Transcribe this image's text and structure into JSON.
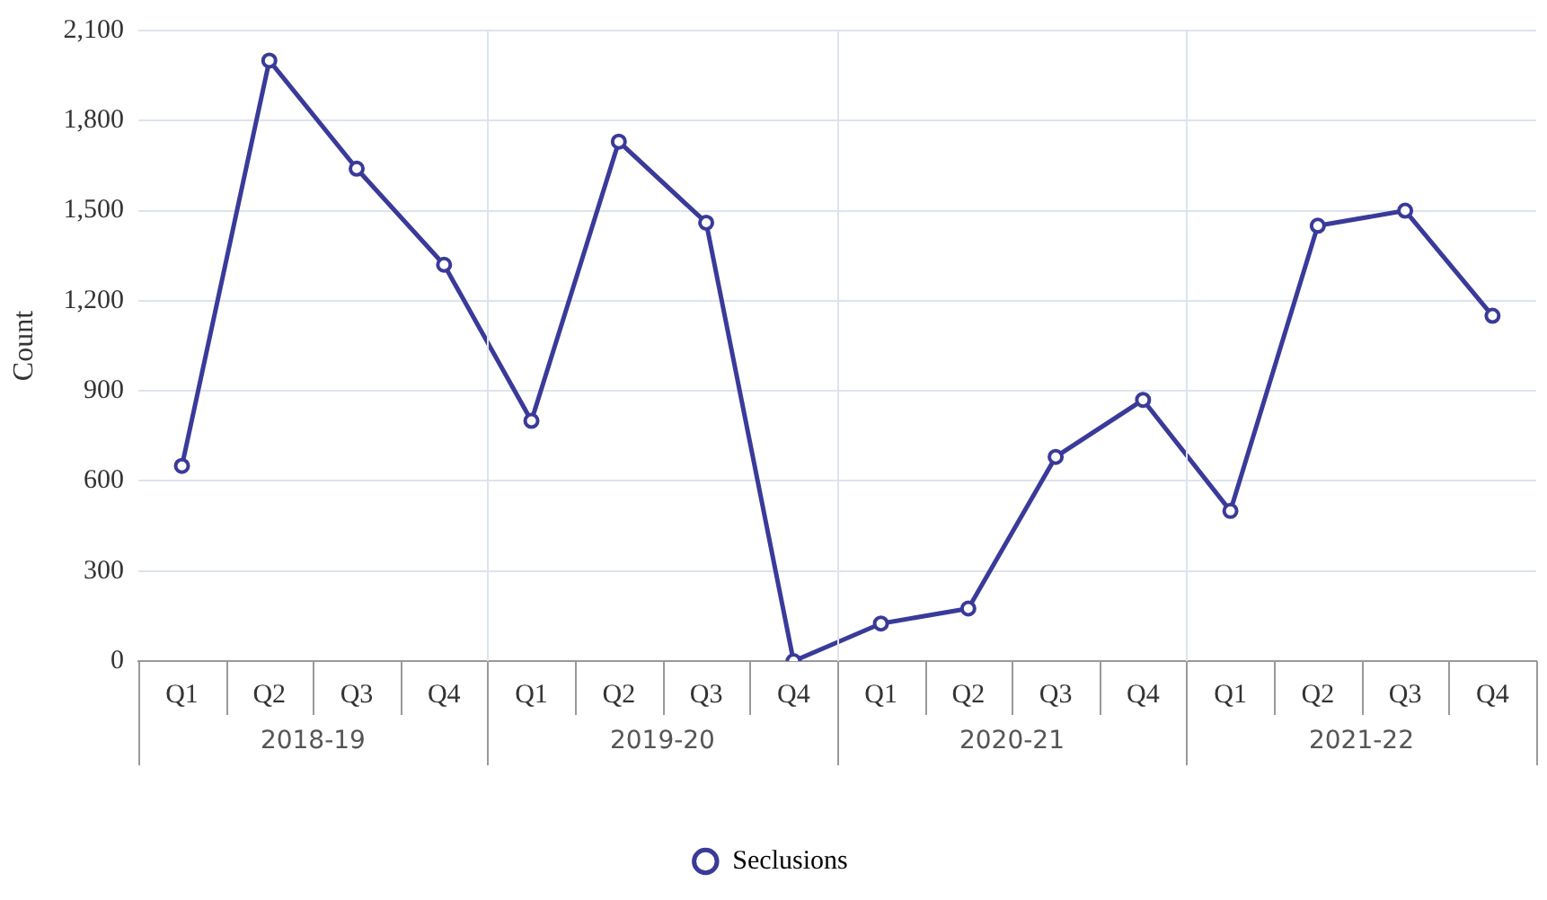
{
  "chart_data": {
    "type": "line",
    "ylabel": "Count",
    "categories": [
      "Q1",
      "Q2",
      "Q3",
      "Q4",
      "Q1",
      "Q2",
      "Q3",
      "Q4",
      "Q1",
      "Q2",
      "Q3",
      "Q4",
      "Q1",
      "Q2",
      "Q3",
      "Q4"
    ],
    "annotations": [
      "2018-19",
      "2019-20",
      "2020-21",
      "2021-22"
    ],
    "series": [
      {
        "name": "Seclusions",
        "color": "#3a3a9a",
        "values": [
          650,
          2000,
          1640,
          1320,
          800,
          1730,
          1460,
          0,
          125,
          175,
          680,
          870,
          500,
          1450,
          1500,
          1150
        ]
      }
    ],
    "ylim": [
      0,
      2100
    ],
    "yticks": [
      0,
      300,
      600,
      900,
      {
        "value": 1200,
        "label": "1,200"
      },
      {
        "value": 1500,
        "label": "1,500"
      },
      {
        "value": 1800,
        "label": "1,800"
      },
      {
        "value": 2100,
        "label": "2,100"
      }
    ],
    "grid": true,
    "legend": "bottom",
    "marker": "circle",
    "line_style": "solid"
  }
}
